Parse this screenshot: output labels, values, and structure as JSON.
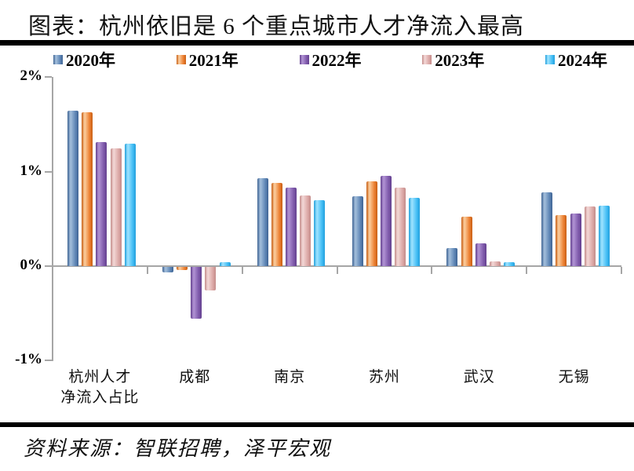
{
  "title": "图表：杭州依旧是 6 个重点城市人才净流入最高",
  "source": "资料来源：智联招聘，泽平宏观",
  "chart_data": {
    "type": "bar",
    "title": "图表：杭州依旧是 6 个重点城市人才净流入最高",
    "xlabel": "",
    "ylabel": "人才净流入占比",
    "ylim": [
      -1,
      2
    ],
    "grid": false,
    "legend_position": "top",
    "axis_color": "#a6a6a6",
    "yticks": [
      {
        "label": "2%",
        "value": 2
      },
      {
        "label": "1%",
        "value": 1
      },
      {
        "label": "0%",
        "value": 0
      },
      {
        "label": "-1%",
        "value": -1
      }
    ],
    "categories": [
      "杭州人才净流入占比",
      "成都",
      "南京",
      "苏州",
      "武汉",
      "无锡"
    ],
    "category_label_lines": [
      [
        "杭州人才",
        "净流入占比"
      ],
      [
        "成都"
      ],
      [
        "南京"
      ],
      [
        "苏州"
      ],
      [
        "武汉"
      ],
      [
        "无锡"
      ]
    ],
    "series": [
      {
        "name": "2020年",
        "color": {
          "dark": "#3f6494",
          "light": "#a4bfdc",
          "base": "#5f87b6"
        },
        "values": [
          1.65,
          -0.06,
          0.93,
          0.74,
          0.19,
          0.78
        ]
      },
      {
        "name": "2021年",
        "color": {
          "dark": "#c85f15",
          "light": "#fbcfa0",
          "base": "#ed8133"
        },
        "values": [
          1.63,
          -0.03,
          0.88,
          0.9,
          0.52,
          0.54
        ]
      },
      {
        "name": "2022年",
        "color": {
          "dark": "#64418f",
          "light": "#b294d5",
          "base": "#7f5aab"
        },
        "values": [
          1.31,
          -0.55,
          0.83,
          0.96,
          0.24,
          0.56
        ]
      },
      {
        "name": "2023年",
        "color": {
          "dark": "#c48c8a",
          "light": "#f3d8d7",
          "base": "#dca9a7"
        },
        "values": [
          1.25,
          -0.25,
          0.75,
          0.83,
          0.05,
          0.63
        ]
      },
      {
        "name": "2024年",
        "color": {
          "dark": "#219fdc",
          "light": "#a0e4ff",
          "base": "#45bef5"
        },
        "values": [
          1.3,
          0.04,
          0.7,
          0.72,
          0.04,
          0.64
        ]
      }
    ]
  }
}
